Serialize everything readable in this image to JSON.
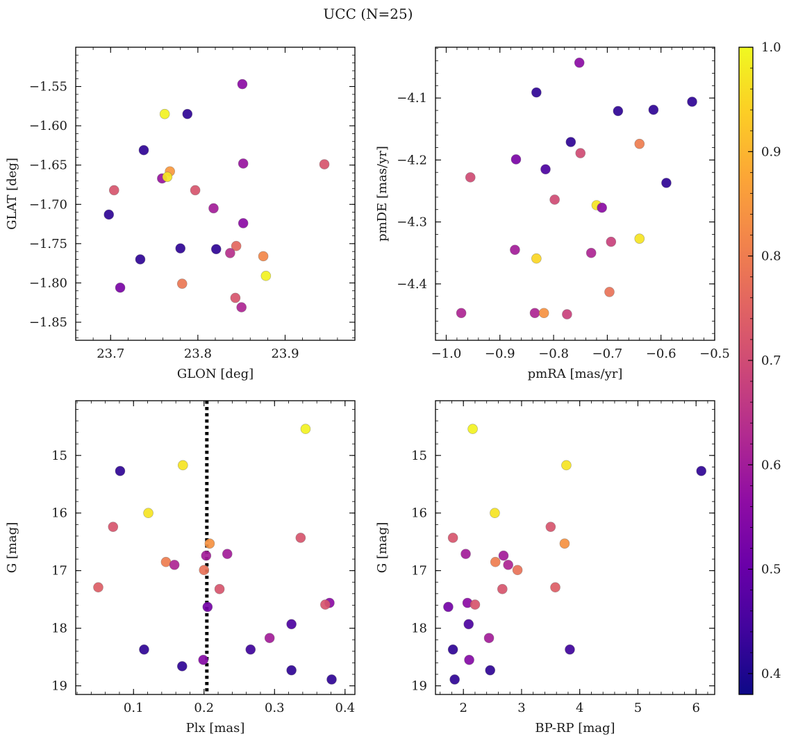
{
  "figure": {
    "title": "UCC (N=25)"
  },
  "colorbar": {
    "cmap": "plasma",
    "range": [
      0.38,
      1.0
    ],
    "ticks": [
      "0.4",
      "0.5",
      "0.6",
      "0.7",
      "0.8",
      "0.9",
      "1.0"
    ]
  },
  "chart_data": [
    {
      "type": "scatter",
      "name_key": "glon-glat",
      "xlabel": "GLON [deg]",
      "ylabel": "GLAT [deg]",
      "xlim": [
        23.66,
        23.98
      ],
      "ylim": [
        -1.873,
        -1.5
      ],
      "y_inverted": false,
      "xticks": [
        23.7,
        23.8,
        23.9
      ],
      "xtick_labels": [
        "23.7",
        "23.8",
        "23.9"
      ],
      "xminor_step": 0.02,
      "yticks": [
        -1.85,
        -1.8,
        -1.75,
        -1.7,
        -1.65,
        -1.6,
        -1.55
      ],
      "ytick_labels": [
        "−1.85",
        "−1.80",
        "−1.75",
        "−1.70",
        "−1.65",
        "−1.60",
        "−1.55"
      ],
      "yminor_step": 0.01,
      "points": [
        {
          "x": 23.851,
          "y": -1.547,
          "c": 0.56
        },
        {
          "x": 23.762,
          "y": -1.585,
          "c": 0.99
        },
        {
          "x": 23.788,
          "y": -1.585,
          "c": 0.42
        },
        {
          "x": 23.738,
          "y": -1.631,
          "c": 0.42
        },
        {
          "x": 23.852,
          "y": -1.648,
          "c": 0.58
        },
        {
          "x": 23.945,
          "y": -1.649,
          "c": 0.72
        },
        {
          "x": 23.768,
          "y": -1.658,
          "c": 0.85
        },
        {
          "x": 23.759,
          "y": -1.667,
          "c": 0.58
        },
        {
          "x": 23.765,
          "y": -1.665,
          "c": 0.97
        },
        {
          "x": 23.704,
          "y": -1.682,
          "c": 0.72
        },
        {
          "x": 23.797,
          "y": -1.682,
          "c": 0.72
        },
        {
          "x": 23.818,
          "y": -1.705,
          "c": 0.6
        },
        {
          "x": 23.698,
          "y": -1.713,
          "c": 0.42
        },
        {
          "x": 23.852,
          "y": -1.724,
          "c": 0.56
        },
        {
          "x": 23.78,
          "y": -1.756,
          "c": 0.42
        },
        {
          "x": 23.821,
          "y": -1.757,
          "c": 0.42
        },
        {
          "x": 23.844,
          "y": -1.753,
          "c": 0.76
        },
        {
          "x": 23.837,
          "y": -1.762,
          "c": 0.64
        },
        {
          "x": 23.875,
          "y": -1.766,
          "c": 0.82
        },
        {
          "x": 23.734,
          "y": -1.77,
          "c": 0.42
        },
        {
          "x": 23.878,
          "y": -1.791,
          "c": 0.99
        },
        {
          "x": 23.782,
          "y": -1.801,
          "c": 0.79
        },
        {
          "x": 23.711,
          "y": -1.806,
          "c": 0.53
        },
        {
          "x": 23.843,
          "y": -1.819,
          "c": 0.72
        },
        {
          "x": 23.85,
          "y": -1.831,
          "c": 0.62
        }
      ]
    },
    {
      "type": "scatter",
      "name_key": "pmra-pmde",
      "xlabel": "pmRA [mas/yr]",
      "ylabel": "pmDE [mas/yr]",
      "xlim": [
        -1.02,
        -0.5
      ],
      "ylim": [
        -4.491,
        -4.018
      ],
      "y_inverted": false,
      "xticks": [
        -1.0,
        -0.9,
        -0.8,
        -0.7,
        -0.6,
        -0.5
      ],
      "xtick_labels": [
        "−1.0",
        "−0.9",
        "−0.8",
        "−0.7",
        "−0.6",
        "−0.5"
      ],
      "xminor_step": 0.02,
      "yticks": [
        -4.4,
        -4.3,
        -4.2,
        -4.1
      ],
      "ytick_labels": [
        "−4.4",
        "−4.3",
        "−4.2",
        "−4.1"
      ],
      "yminor_step": 0.02,
      "points": [
        {
          "x": -0.752,
          "y": -4.043,
          "c": 0.56
        },
        {
          "x": -0.832,
          "y": -4.091,
          "c": 0.42
        },
        {
          "x": -0.542,
          "y": -4.106,
          "c": 0.42
        },
        {
          "x": -0.68,
          "y": -4.121,
          "c": 0.42
        },
        {
          "x": -0.614,
          "y": -4.119,
          "c": 0.42
        },
        {
          "x": -0.768,
          "y": -4.171,
          "c": 0.42
        },
        {
          "x": -0.64,
          "y": -4.174,
          "c": 0.8
        },
        {
          "x": -0.75,
          "y": -4.189,
          "c": 0.7
        },
        {
          "x": -0.87,
          "y": -4.199,
          "c": 0.53
        },
        {
          "x": -0.815,
          "y": -4.215,
          "c": 0.46
        },
        {
          "x": -0.955,
          "y": -4.228,
          "c": 0.7
        },
        {
          "x": -0.59,
          "y": -4.237,
          "c": 0.42
        },
        {
          "x": -0.798,
          "y": -4.264,
          "c": 0.7
        },
        {
          "x": -0.72,
          "y": -4.273,
          "c": 0.97
        },
        {
          "x": -0.71,
          "y": -4.277,
          "c": 0.56
        },
        {
          "x": -0.64,
          "y": -4.327,
          "c": 0.97
        },
        {
          "x": -0.693,
          "y": -4.332,
          "c": 0.68
        },
        {
          "x": -0.872,
          "y": -4.345,
          "c": 0.6
        },
        {
          "x": -0.73,
          "y": -4.35,
          "c": 0.62
        },
        {
          "x": -0.832,
          "y": -4.359,
          "c": 0.95
        },
        {
          "x": -0.696,
          "y": -4.413,
          "c": 0.78
        },
        {
          "x": -0.972,
          "y": -4.447,
          "c": 0.62
        },
        {
          "x": -0.835,
          "y": -4.447,
          "c": 0.62
        },
        {
          "x": -0.818,
          "y": -4.447,
          "c": 0.84
        },
        {
          "x": -0.775,
          "y": -4.449,
          "c": 0.68
        }
      ]
    },
    {
      "type": "scatter",
      "name_key": "plx-g",
      "xlabel": "Plx [mas]",
      "ylabel": "G [mag]",
      "xlim": [
        0.018,
        0.414
      ],
      "ylim": [
        19.15,
        14.05
      ],
      "y_inverted": true,
      "xticks": [
        0.1,
        0.2,
        0.3,
        0.4
      ],
      "xtick_labels": [
        "0.1",
        "0.2",
        "0.3",
        "0.4"
      ],
      "xminor_step": 0.02,
      "yticks": [
        15,
        16,
        17,
        18,
        19
      ],
      "ytick_labels": [
        "15",
        "16",
        "17",
        "18",
        "19"
      ],
      "yminor_step": 0.2,
      "vline": 0.204,
      "points": [
        {
          "x": 0.344,
          "y": 14.54,
          "c": 0.99
        },
        {
          "x": 0.17,
          "y": 15.17,
          "c": 0.97
        },
        {
          "x": 0.081,
          "y": 15.27,
          "c": 0.42
        },
        {
          "x": 0.121,
          "y": 16.0,
          "c": 0.97
        },
        {
          "x": 0.071,
          "y": 16.24,
          "c": 0.72
        },
        {
          "x": 0.337,
          "y": 16.43,
          "c": 0.72
        },
        {
          "x": 0.208,
          "y": 16.53,
          "c": 0.84
        },
        {
          "x": 0.233,
          "y": 16.71,
          "c": 0.6
        },
        {
          "x": 0.203,
          "y": 16.74,
          "c": 0.6
        },
        {
          "x": 0.146,
          "y": 16.85,
          "c": 0.8
        },
        {
          "x": 0.158,
          "y": 16.9,
          "c": 0.62
        },
        {
          "x": 0.2,
          "y": 16.99,
          "c": 0.78
        },
        {
          "x": 0.05,
          "y": 17.29,
          "c": 0.74
        },
        {
          "x": 0.222,
          "y": 17.32,
          "c": 0.72
        },
        {
          "x": 0.378,
          "y": 17.56,
          "c": 0.56
        },
        {
          "x": 0.372,
          "y": 17.59,
          "c": 0.72
        },
        {
          "x": 0.205,
          "y": 17.63,
          "c": 0.52
        },
        {
          "x": 0.324,
          "y": 17.93,
          "c": 0.46
        },
        {
          "x": 0.293,
          "y": 18.17,
          "c": 0.6
        },
        {
          "x": 0.115,
          "y": 18.37,
          "c": 0.42
        },
        {
          "x": 0.266,
          "y": 18.37,
          "c": 0.44
        },
        {
          "x": 0.199,
          "y": 18.55,
          "c": 0.55
        },
        {
          "x": 0.169,
          "y": 18.66,
          "c": 0.42
        },
        {
          "x": 0.324,
          "y": 18.73,
          "c": 0.42
        },
        {
          "x": 0.381,
          "y": 18.89,
          "c": 0.42
        }
      ]
    },
    {
      "type": "scatter",
      "name_key": "bprp-g",
      "xlabel": "BP-RP [mag]",
      "ylabel": "G [mag]",
      "xlim": [
        1.52,
        6.32
      ],
      "ylim": [
        19.15,
        14.05
      ],
      "y_inverted": true,
      "xticks": [
        2,
        3,
        4,
        5,
        6
      ],
      "xtick_labels": [
        "2",
        "3",
        "4",
        "5",
        "6"
      ],
      "xminor_step": 0.2,
      "yticks": [
        15,
        16,
        17,
        18,
        19
      ],
      "ytick_labels": [
        "15",
        "16",
        "17",
        "18",
        "19"
      ],
      "yminor_step": 0.2,
      "points": [
        {
          "x": 2.16,
          "y": 14.54,
          "c": 0.99
        },
        {
          "x": 3.77,
          "y": 15.17,
          "c": 0.97
        },
        {
          "x": 6.09,
          "y": 15.27,
          "c": 0.42
        },
        {
          "x": 2.54,
          "y": 16.0,
          "c": 0.97
        },
        {
          "x": 3.5,
          "y": 16.24,
          "c": 0.72
        },
        {
          "x": 1.82,
          "y": 16.43,
          "c": 0.72
        },
        {
          "x": 3.74,
          "y": 16.53,
          "c": 0.84
        },
        {
          "x": 2.04,
          "y": 16.71,
          "c": 0.6
        },
        {
          "x": 2.69,
          "y": 16.74,
          "c": 0.6
        },
        {
          "x": 2.55,
          "y": 16.85,
          "c": 0.8
        },
        {
          "x": 2.77,
          "y": 16.9,
          "c": 0.62
        },
        {
          "x": 2.93,
          "y": 16.99,
          "c": 0.78
        },
        {
          "x": 3.58,
          "y": 17.29,
          "c": 0.74
        },
        {
          "x": 2.67,
          "y": 17.32,
          "c": 0.72
        },
        {
          "x": 2.07,
          "y": 17.56,
          "c": 0.56
        },
        {
          "x": 2.2,
          "y": 17.59,
          "c": 0.72
        },
        {
          "x": 1.74,
          "y": 17.63,
          "c": 0.52
        },
        {
          "x": 2.09,
          "y": 17.93,
          "c": 0.46
        },
        {
          "x": 2.44,
          "y": 18.17,
          "c": 0.6
        },
        {
          "x": 1.82,
          "y": 18.37,
          "c": 0.42
        },
        {
          "x": 3.83,
          "y": 18.37,
          "c": 0.44
        },
        {
          "x": 2.1,
          "y": 18.55,
          "c": 0.55
        },
        {
          "x": 2.46,
          "y": 18.73,
          "c": 0.42
        },
        {
          "x": 1.85,
          "y": 18.89,
          "c": 0.42
        }
      ]
    }
  ]
}
